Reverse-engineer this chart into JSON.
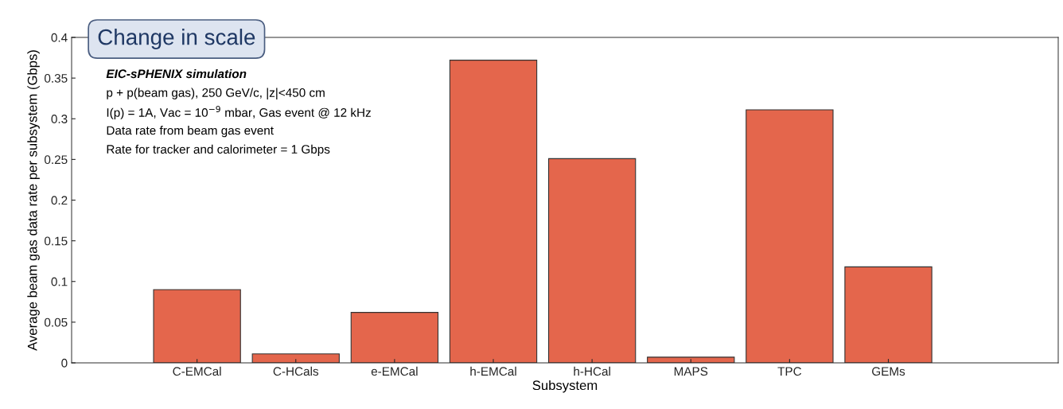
{
  "chart_data": {
    "type": "bar",
    "xlabel": "Subsystem",
    "ylabel": "Average beam gas data rate per subsystem (Gbps)",
    "categories": [
      "C-EMCal",
      "C-HCals",
      "e-EMCal",
      "h-EMCal",
      "h-HCal",
      "MAPS",
      "TPC",
      "GEMs"
    ],
    "values": [
      0.09,
      0.011,
      0.062,
      0.372,
      0.251,
      0.007,
      0.311,
      0.118
    ],
    "color": "#e4664c",
    "ylim": [
      0,
      0.4
    ],
    "yticks": [
      0,
      0.05,
      0.1,
      0.15,
      0.2,
      0.25,
      0.3,
      0.35,
      0.4
    ],
    "grid": false,
    "annotations": [
      "Change in scale",
      "EIC-sPHENIX simulation",
      "p + p(beam gas), 250 GeV/c, |z|<450 cm",
      "I(p) = 1A, Vac = 10$^{−9}$ mbar, Gas event @ 12 kHz",
      "Data rate from beam gas event",
      "Rate for tracker and calorimeter = 1 Gbps"
    ]
  }
}
